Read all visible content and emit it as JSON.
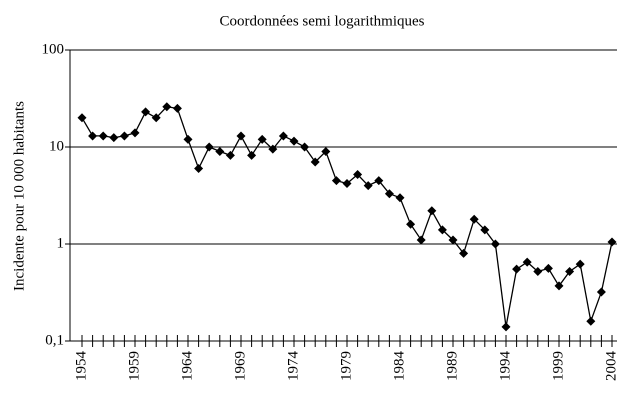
{
  "chart_data": {
    "type": "line",
    "title": "Coordonnées semi logarithmiques",
    "y_label": "Incidente pour 10 000 habitants",
    "categories": [
      "1954",
      null,
      null,
      null,
      null,
      "1959",
      null,
      null,
      null,
      null,
      "1964",
      null,
      null,
      null,
      null,
      "1969",
      null,
      null,
      null,
      null,
      "1974",
      null,
      null,
      null,
      null,
      "1979",
      null,
      null,
      null,
      null,
      "1984",
      null,
      null,
      null,
      null,
      "1989",
      null,
      null,
      null,
      null,
      "1994",
      null,
      null,
      null,
      null,
      "1999",
      null,
      null,
      null,
      null,
      "2004"
    ],
    "series": [
      {
        "name": "Incidente",
        "color": "#000000",
        "values": [
          20,
          13,
          13,
          12.5,
          13,
          14,
          23,
          20,
          26,
          25,
          12,
          6,
          10,
          9,
          8.2,
          13,
          8.2,
          12,
          9.5,
          13,
          11.5,
          10,
          7,
          9,
          4.5,
          4.2,
          5.2,
          4,
          4.5,
          3.3,
          3,
          1.6,
          1.1,
          2.2,
          1.4,
          1.1,
          0.8,
          1.8,
          1.4,
          1,
          0.14,
          0.55,
          0.65,
          0.52,
          0.56,
          0.37,
          0.52,
          0.62,
          0.16,
          0.32,
          1.05
        ]
      }
    ],
    "log_y": true,
    "ylim": [
      0.1,
      100
    ],
    "yticks": [
      {
        "value": 0.1,
        "label": "0,1"
      },
      1,
      10,
      100
    ],
    "grid": true
  }
}
